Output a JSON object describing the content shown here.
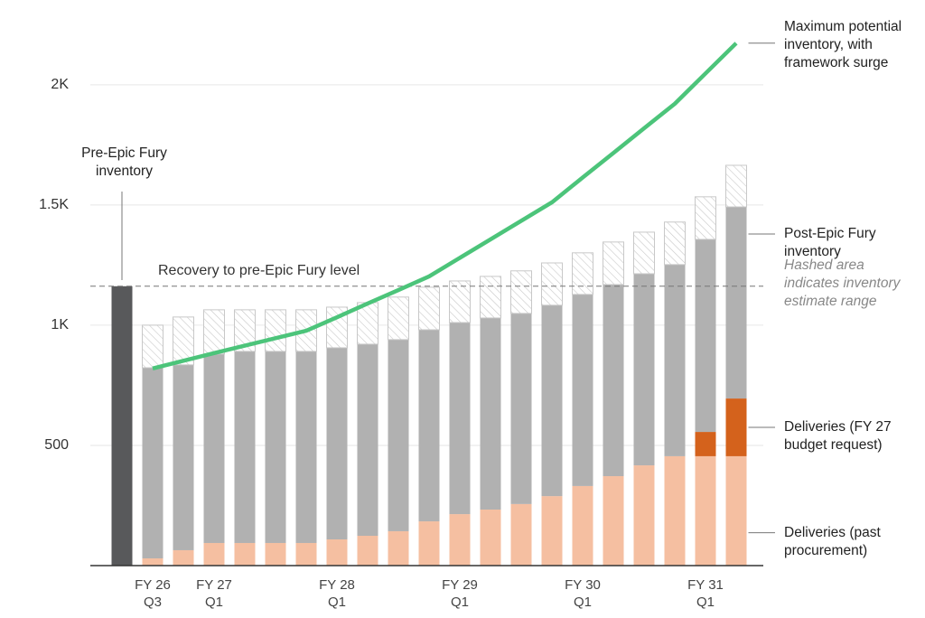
{
  "chart_data": {
    "type": "bar",
    "categories": [
      null,
      "FY 26 Q3",
      null,
      "FY 27 Q1",
      null,
      null,
      null,
      "FY 28 Q1",
      null,
      null,
      null,
      "FY 29 Q1",
      null,
      null,
      null,
      "FY 30 Q1",
      null,
      null,
      null,
      "FY 31 Q1",
      null
    ],
    "series": [
      {
        "name": "Pre-Epic Fury inventory",
        "color": "#58595b",
        "values": [
          1162,
          null,
          null,
          null,
          null,
          null,
          null,
          null,
          null,
          null,
          null,
          null,
          null,
          null,
          null,
          null,
          null,
          null,
          null,
          null,
          null
        ]
      },
      {
        "name": "Deliveries (past procurement)",
        "color": "#f5bfa1",
        "values": [
          null,
          30,
          64,
          94,
          94,
          94,
          94,
          109,
          124,
          143,
          184,
          214,
          233,
          256,
          289,
          331,
          372,
          417,
          455,
          455,
          455
        ]
      },
      {
        "name": "Deliveries (FY 27 budget request)",
        "color": "#d4621c",
        "values": [
          null,
          0,
          0,
          0,
          0,
          0,
          0,
          0,
          0,
          0,
          0,
          0,
          0,
          0,
          0,
          0,
          0,
          0,
          0,
          101,
          240
        ]
      },
      {
        "name": "Post-Epic Fury inventory",
        "color": "#b1b1b1",
        "values": [
          null,
          793,
          771,
          786,
          797,
          797,
          797,
          797,
          797,
          797,
          797,
          797,
          797,
          793,
          794,
          797,
          797,
          797,
          797,
          801,
          797
        ]
      },
      {
        "name": "Hashed area indicates inventory estimate range",
        "color": "#c8c8c8",
        "hatch": true,
        "values": [
          null,
          177,
          199,
          184,
          173,
          173,
          173,
          169,
          173,
          177,
          177,
          173,
          173,
          177,
          176,
          173,
          177,
          173,
          177,
          177,
          173
        ]
      },
      {
        "name": "Maximum potential inventory, with framework surge",
        "type": "line",
        "color": "#4cc47a",
        "values": [
          null,
          820,
          852,
          884,
          915,
          946,
          977,
          1033,
          1090,
          1146,
          1203,
          1280,
          1357,
          1434,
          1511,
          1614,
          1716,
          1819,
          1921,
          2047,
          2173
        ]
      }
    ],
    "reference_line": {
      "value": 1162,
      "label": "Recovery to pre-Epic Fury level"
    },
    "ylim": [
      0,
      2300
    ],
    "yticks": [
      {
        "value": 500,
        "label": "500"
      },
      {
        "value": 1000,
        "label": "1K"
      },
      {
        "value": 1500,
        "label": "1.5K"
      },
      {
        "value": 2000,
        "label": "2K"
      }
    ],
    "grid": true
  }
}
